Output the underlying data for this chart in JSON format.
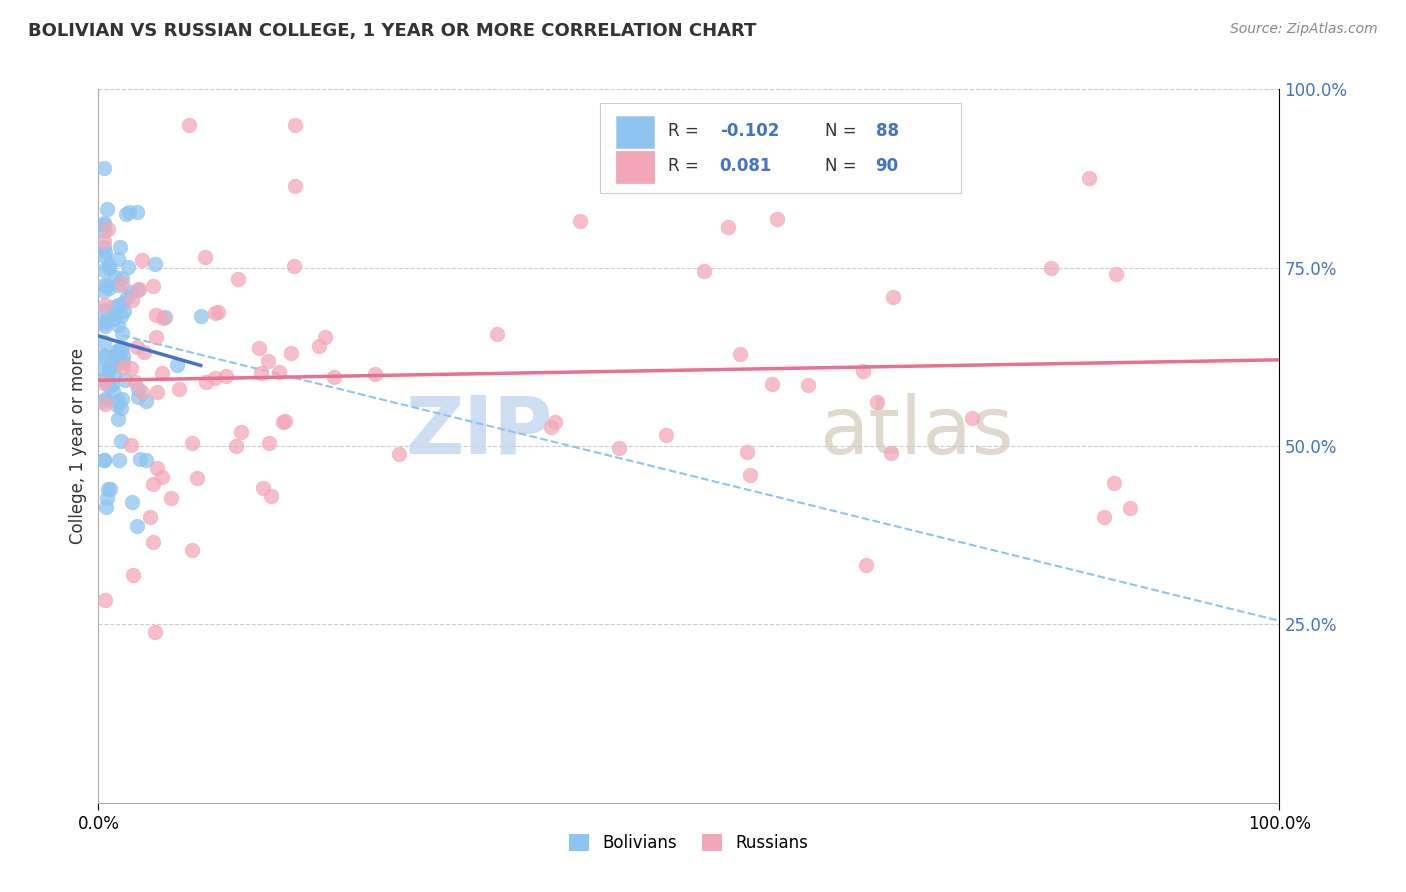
{
  "title": "BOLIVIAN VS RUSSIAN COLLEGE, 1 YEAR OR MORE CORRELATION CHART",
  "source_text": "Source: ZipAtlas.com",
  "ylabel": "College, 1 year or more",
  "legend_label_1": "Bolivians",
  "legend_label_2": "Russians",
  "R1": -0.102,
  "N1": 88,
  "R2": 0.081,
  "N2": 90,
  "color_blue": "#8EC4F0",
  "color_pink": "#F4A7B9",
  "color_blue_line": "#4472C4",
  "color_pink_line": "#E87090",
  "color_dashed": "#8EC4F0",
  "figsize": [
    14.06,
    8.92
  ],
  "dpi": 100,
  "watermark_zip": "ZIP",
  "watermark_atlas": "atlas",
  "seed": 42
}
